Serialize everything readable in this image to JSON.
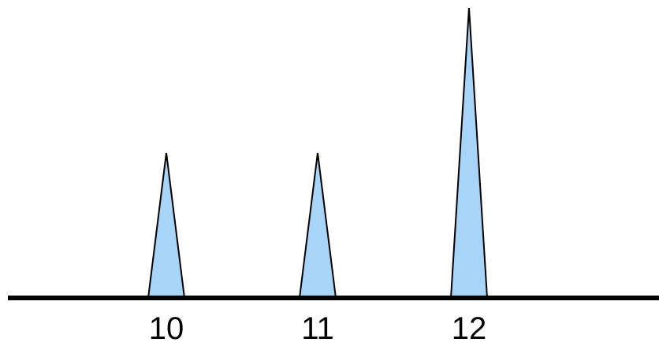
{
  "chart_data": {
    "type": "bar",
    "categories": [
      "10",
      "11",
      "12"
    ],
    "values": [
      1,
      1,
      2
    ],
    "ylim": [
      0,
      2
    ],
    "grid": false,
    "bar_shape": "triangle",
    "colors": {
      "fill": "#A8D4F8",
      "outline": "#000000",
      "axis": "#000000"
    }
  }
}
